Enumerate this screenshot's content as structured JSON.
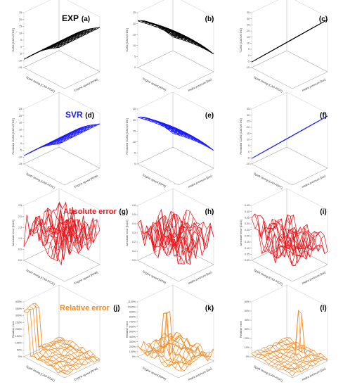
{
  "figure": {
    "row_titles": [
      {
        "text": "EXP",
        "color": "#000000"
      },
      {
        "text": "SVR",
        "color": "#1a1aff"
      },
      {
        "text": "Absolute error",
        "color": "#e8161b"
      },
      {
        "text": "Relative error",
        "color": "#f58a1f"
      }
    ],
    "series_colors": [
      "#000000",
      "#1a1aff",
      "#e8161b",
      "#f58a1f"
    ]
  },
  "chart_data": [
    {
      "panel": "(a)",
      "type": "surface",
      "surface": "exp_a",
      "xlabel": "Spark timing [CAD ATDC]",
      "ylabel": "Engine speed [RPM]",
      "zlabel": "CA50 [CAD ATDC]",
      "zticks": [
        "25",
        "20",
        "15",
        "10",
        "5",
        "0",
        "-5",
        "-10",
        "-15"
      ]
    },
    {
      "panel": "(b)",
      "type": "surface",
      "surface": "exp_b",
      "xlabel": "Engine speed [RPM]",
      "ylabel": "Intake pressure [bar]",
      "zlabel": "CA50 [CAD ATDC]",
      "zticks": [
        "25",
        "20",
        "15",
        "10",
        "5",
        "0"
      ]
    },
    {
      "panel": "(c)",
      "type": "surface",
      "surface": "exp_c",
      "xlabel": "Spark timing [CAD ATDC]",
      "ylabel": "Intake pressure [bar]",
      "zlabel": "CA50 [CAD ATDC]",
      "zticks": [
        "35",
        "30",
        "25",
        "20",
        "15",
        "10",
        "5",
        "0",
        "-5",
        "-10"
      ]
    },
    {
      "panel": "(d)",
      "type": "surface",
      "surface": "exp_a",
      "xlabel": "Spark timing [CAD ATDC]",
      "ylabel": "Engine speed [RPM]",
      "zlabel": "Predicted CA50 [CAD ATDC]",
      "zticks": [
        "25",
        "20",
        "15",
        "10",
        "5",
        "0",
        "-5",
        "-10",
        "-15"
      ]
    },
    {
      "panel": "(e)",
      "type": "surface",
      "surface": "exp_b",
      "xlabel": "Engine speed [RPM]",
      "ylabel": "Intake pressure [bar]",
      "zlabel": "Predicted CA50 [CAD ATDC]",
      "zticks": [
        "25",
        "20",
        "15",
        "10",
        "5",
        "0"
      ]
    },
    {
      "panel": "(f)",
      "type": "surface",
      "surface": "exp_c",
      "xlabel": "Spark timing [CAD ATDC]",
      "ylabel": "Intake pressure [bar]",
      "zlabel": "Predicted CA50 [CAD ATDC]",
      "zticks": [
        "35",
        "30",
        "25",
        "20",
        "15",
        "10",
        "5",
        "0",
        "-5",
        "-10"
      ]
    },
    {
      "panel": "(g)",
      "type": "surface",
      "surface": "abs_g",
      "xlabel": "Spark timing [CAD ATDC]",
      "ylabel": "Engine speed [RPM]",
      "zlabel": "Absolute error [CAD]",
      "zticks": [
        "2.5",
        "2.0",
        "1.5",
        "1.0",
        "0.5",
        "0.0"
      ]
    },
    {
      "panel": "(h)",
      "type": "surface",
      "surface": "abs_h",
      "xlabel": "Engine speed [RPM]",
      "ylabel": "Intake pressure [bar]",
      "zlabel": "Absolute error [CAD]",
      "zticks": [
        "0.6",
        "0.5",
        "0.4",
        "0.3",
        "0.2",
        "0.1",
        "0.0"
      ]
    },
    {
      "panel": "(i)",
      "type": "surface",
      "surface": "abs_i",
      "xlabel": "Spark timing [CAD ATDC]",
      "ylabel": "Intake pressure [bar]",
      "zlabel": "Absolute error [CAD]",
      "zticks": [
        "0.45",
        "0.40",
        "0.35",
        "0.30",
        "0.25",
        "0.20",
        "0.15",
        "0.10",
        "0.05",
        "0.00"
      ]
    },
    {
      "panel": "(j)",
      "type": "surface",
      "surface": "rel_j",
      "xlabel": "Spark timing [CAD ATDC]",
      "ylabel": "Engine speed [RPM]",
      "zlabel": "Relative error",
      "zticks": [
        "400%",
        "350%",
        "300%",
        "250%",
        "200%",
        "150%",
        "100%",
        "50%",
        "0%"
      ]
    },
    {
      "panel": "(k)",
      "type": "surface",
      "surface": "rel_k",
      "xlabel": "Engine speed [RPM]",
      "ylabel": "Intake pressure [bar]",
      "zlabel": "Relative error",
      "zticks": [
        "1100%",
        "1000%",
        "900%",
        "800%",
        "700%",
        "600%",
        "500%",
        "400%",
        "300%",
        "200%",
        "100%",
        "0%"
      ]
    },
    {
      "panel": "(l)",
      "type": "surface",
      "surface": "rel_l",
      "xlabel": "Spark timing [CAD ATDC]",
      "ylabel": "Intake pressure [bar]",
      "zlabel": "Relative error",
      "zticks": [
        "60%",
        "50%",
        "40%",
        "30%",
        "20%",
        "10%",
        "0%"
      ]
    }
  ]
}
